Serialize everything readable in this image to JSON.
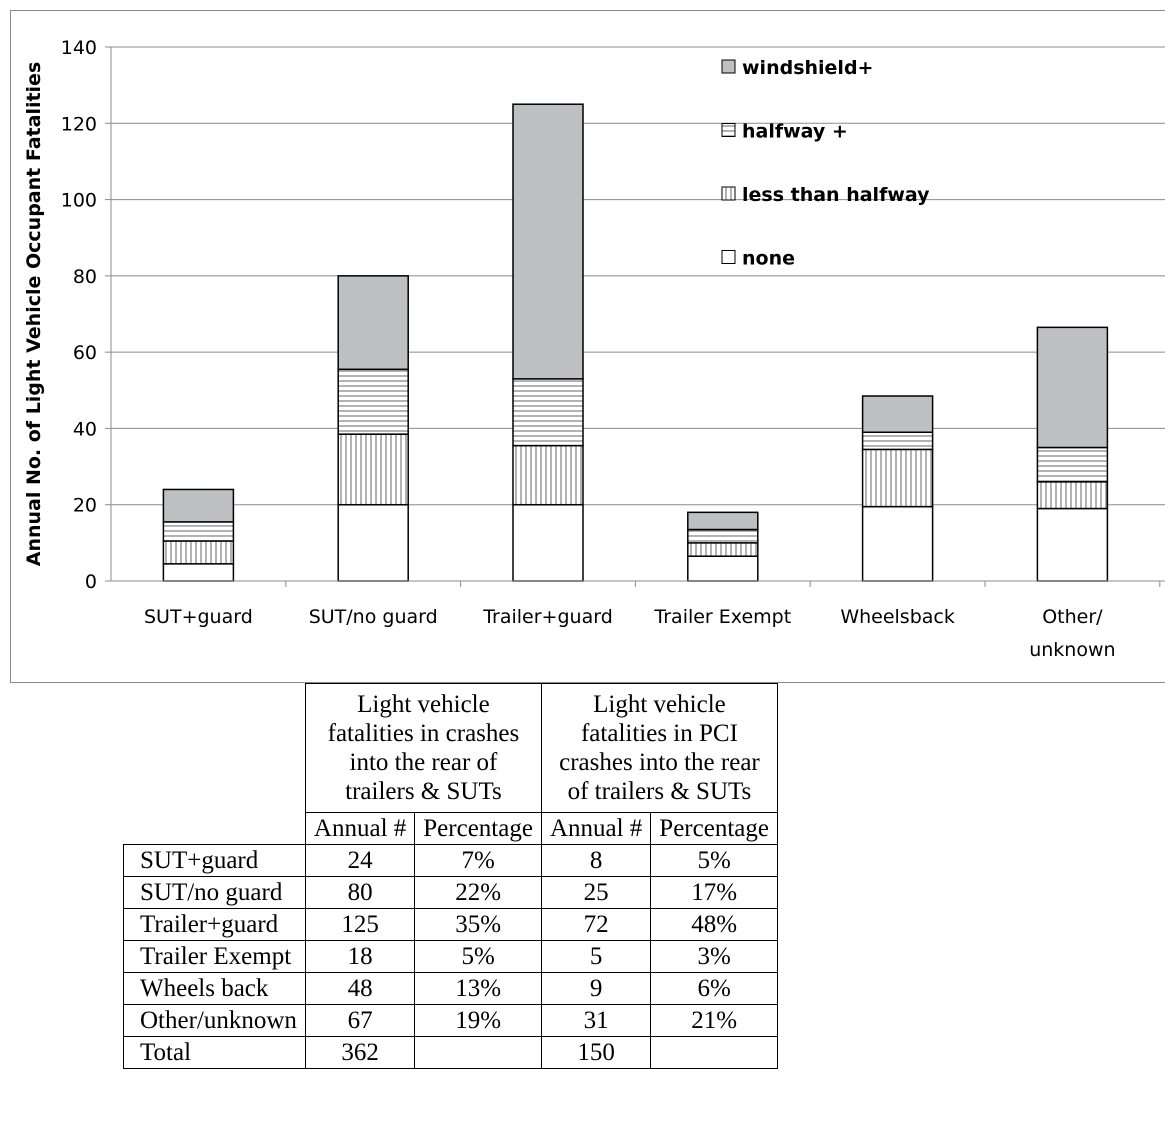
{
  "chart_data": {
    "type": "bar",
    "stacked": true,
    "categories": [
      "SUT+guard",
      "SUT/no guard",
      "Trailer+guard",
      "Trailer Exempt",
      "Wheelsback",
      "Other/\nunknown"
    ],
    "series": [
      {
        "name": "none",
        "values": [
          4.5,
          20,
          20,
          6.5,
          19.5,
          19
        ],
        "pattern": "none",
        "color": "#ffffff"
      },
      {
        "name": "less than halfway",
        "values": [
          6,
          18.5,
          15.5,
          3.5,
          15,
          7
        ],
        "pattern": "vertical-lines",
        "color": "#ffffff"
      },
      {
        "name": "halfway +",
        "values": [
          5,
          17,
          17.5,
          3.5,
          4.5,
          9
        ],
        "pattern": "horizontal-lines",
        "color": "#ffffff"
      },
      {
        "name": "windshield+",
        "values": [
          8.5,
          24.5,
          72,
          4.5,
          9.5,
          31.5
        ],
        "pattern": "solid",
        "color": "#bfc0c4"
      }
    ],
    "legend_order": [
      "windshield+",
      "halfway +",
      "less than halfway",
      "none"
    ],
    "title": "",
    "xlabel": "",
    "ylabel": "Annual No. of Light Vehicle Occupant  Fatalities",
    "ylim": [
      0,
      140
    ],
    "yticks": [
      0,
      20,
      40,
      60,
      80,
      100,
      120,
      140
    ],
    "grid": true,
    "legend_position": "top-right"
  },
  "table": {
    "group_headers": [
      "Light vehicle fatalities in crashes into the rear of trailers & SUTs",
      "Light vehicle fatalities in PCI crashes into the rear of trailers & SUTs"
    ],
    "sub_headers": [
      "Annual #",
      "Percentage",
      "Annual #",
      "Percentage"
    ],
    "rows": [
      {
        "label": "SUT+guard",
        "cells": [
          "24",
          "7%",
          "8",
          "5%"
        ]
      },
      {
        "label": "SUT/no guard",
        "cells": [
          "80",
          "22%",
          "25",
          "17%"
        ]
      },
      {
        "label": "Trailer+guard",
        "cells": [
          "125",
          "35%",
          "72",
          "48%"
        ]
      },
      {
        "label": "Trailer Exempt",
        "cells": [
          "18",
          "5%",
          "5",
          "3%"
        ]
      },
      {
        "label": "Wheels back",
        "cells": [
          "48",
          "13%",
          "9",
          "6%"
        ]
      },
      {
        "label": "Other/unknown",
        "cells": [
          "67",
          "19%",
          "31",
          "21%"
        ]
      },
      {
        "label": "Total",
        "cells": [
          "362",
          "",
          "150",
          ""
        ]
      }
    ]
  }
}
